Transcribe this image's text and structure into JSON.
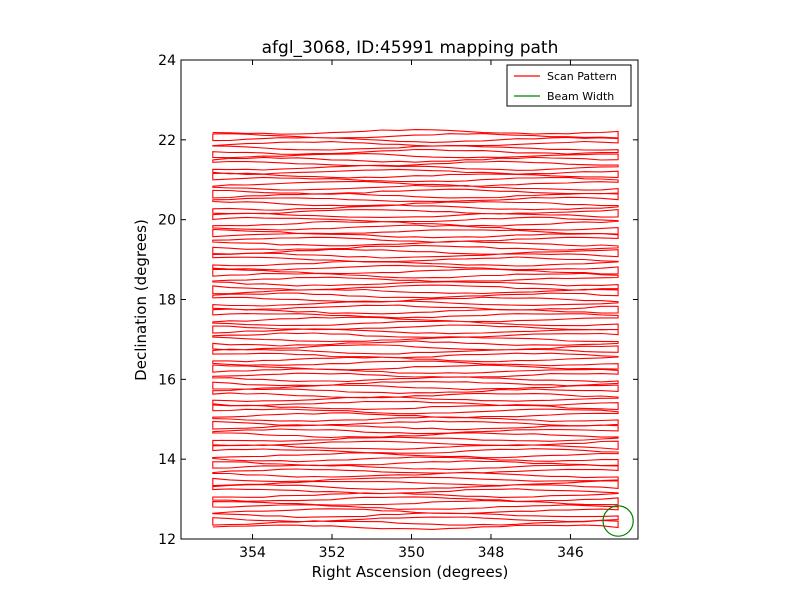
{
  "chart_data": {
    "type": "line",
    "title": "afgl_3068, ID:45991 mapping path",
    "xlabel": "Right Ascension (degrees)",
    "ylabel": "Declination (degrees)",
    "xlim": [
      355.8,
      344.3
    ],
    "ylim": [
      12,
      24
    ],
    "x_reversed": true,
    "xticks": [
      354,
      352,
      350,
      348,
      346
    ],
    "yticks": [
      12,
      14,
      16,
      18,
      20,
      22,
      24
    ],
    "xtick_labels": [
      "354",
      "352",
      "350",
      "348",
      "346"
    ],
    "ytick_labels": [
      "12",
      "14",
      "16",
      "18",
      "20",
      "22",
      "24"
    ],
    "grid": false,
    "legend_position": "top-right",
    "series": [
      {
        "name": "Scan Pattern",
        "color": "#ff0000",
        "style": "raster-scan",
        "ra_range": [
          355.0,
          344.8
        ],
        "dec_start": 12.3,
        "dec_end": 22.2,
        "dec_step": 0.1
      },
      {
        "name": "Beam Width",
        "color": "#008000",
        "style": "circle",
        "center": [
          344.8,
          12.45
        ],
        "radius": 0.38
      }
    ]
  }
}
